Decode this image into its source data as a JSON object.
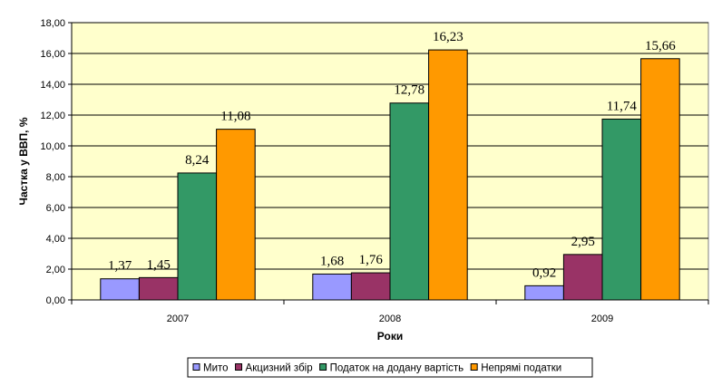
{
  "chart_data": {
    "type": "bar",
    "categories": [
      "2007",
      "2008",
      "2009"
    ],
    "series": [
      {
        "name": "Мито",
        "color": "#9999ff",
        "values": [
          1.37,
          1.68,
          0.92
        ],
        "labels": [
          "1,37",
          "1,68",
          "0,92"
        ]
      },
      {
        "name": "Акцизний збір",
        "color": "#993366",
        "values": [
          1.45,
          1.76,
          2.95
        ],
        "labels": [
          "1,45",
          "1,76",
          "2,95"
        ]
      },
      {
        "name": "Податок на додану вартість",
        "color": "#339966",
        "values": [
          8.24,
          12.78,
          11.74
        ],
        "labels": [
          "8,24",
          "12,78",
          "11,74"
        ]
      },
      {
        "name": "Непрямі податки",
        "color": "#ff9900",
        "values": [
          11.08,
          16.23,
          15.66
        ],
        "labels": [
          "11,08",
          "16,23",
          "15,66"
        ]
      }
    ],
    "xlabel": "Роки",
    "ylabel": "Частка у ВВП, %",
    "ylim": [
      0,
      18
    ],
    "yticks": [
      0,
      2,
      4,
      6,
      8,
      10,
      12,
      14,
      16,
      18
    ],
    "ytick_labels": [
      "0,00",
      "2,00",
      "4,00",
      "6,00",
      "8,00",
      "10,00",
      "12,00",
      "14,00",
      "16,00",
      "18,00"
    ],
    "plot_background": "#ffffcc",
    "grid": true,
    "legend_position": "bottom"
  }
}
